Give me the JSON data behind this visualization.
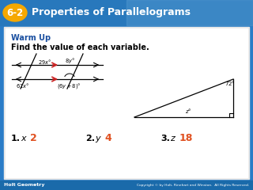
{
  "title_box_color": "#f5a800",
  "title_text": "6-2",
  "title_subject": "Properties of Parallelograms",
  "header_bg_left": "#1a5fa8",
  "header_bg_right": "#5ba0d0",
  "header_text_color": "#ffffff",
  "warm_up_color": "#1a4fa0",
  "warm_up_text": "Warm Up",
  "instruction_text": "Find the value of each variable.",
  "answer1_val": "2",
  "answer2_val": "4",
  "answer3_val": "18",
  "answer_val_color": "#e05020",
  "footer_bg": "#1a6aaa",
  "footer_left": "Holt Geometry",
  "footer_right": "Copyright © by Holt, Rinehart and Winston.  All Rights Reserved.",
  "content_bg": "#e8e8e8",
  "body_bg": "#ffffff",
  "line_color": "#000000",
  "arrow_color": "#cc2222"
}
